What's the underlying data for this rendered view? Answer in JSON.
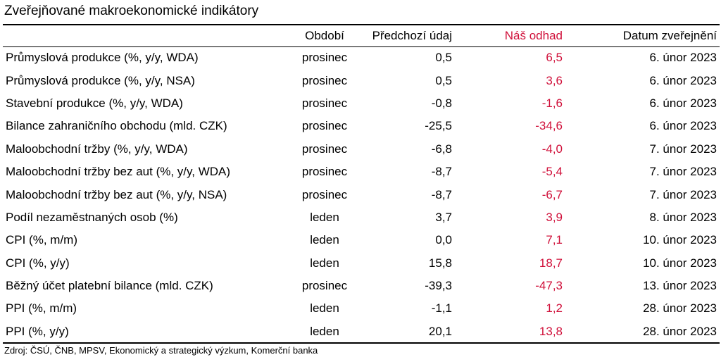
{
  "title": "Zveřejňované makroekonomické indikátory",
  "columns": {
    "name": "",
    "period": "Období",
    "previous": "Předchozí údaj",
    "estimate": "Náš odhad",
    "date": "Datum zveřejnění"
  },
  "colors": {
    "estimate": "#d0103a"
  },
  "rows": [
    {
      "name": "Průmyslová produkce (%, y/y, WDA)",
      "period": "prosinec",
      "previous": "0,5",
      "estimate": "6,5",
      "date": "6. únor 2023"
    },
    {
      "name": "Průmyslová produkce (%, y/y, NSA)",
      "period": "prosinec",
      "previous": "0,5",
      "estimate": "3,6",
      "date": "6. únor 2023"
    },
    {
      "name": "Stavební produkce (%, y/y, WDA)",
      "period": "prosinec",
      "previous": "-0,8",
      "estimate": "-1,6",
      "date": "6. únor 2023"
    },
    {
      "name": "Bilance zahraničního obchodu (mld. CZK)",
      "period": "prosinec",
      "previous": "-25,5",
      "estimate": "-34,6",
      "date": "6. únor 2023"
    },
    {
      "name": "Maloobchodní tržby (%, y/y, WDA)",
      "period": "prosinec",
      "previous": "-6,8",
      "estimate": "-4,0",
      "date": "7. únor 2023"
    },
    {
      "name": "Maloobchodní tržby bez aut (%, y/y, WDA)",
      "period": "prosinec",
      "previous": "-8,7",
      "estimate": "-5,4",
      "date": "7. únor 2023"
    },
    {
      "name": "Maloobchodní tržby bez aut (%, y/y, NSA)",
      "period": "prosinec",
      "previous": "-8,7",
      "estimate": "-6,7",
      "date": "7. únor 2023"
    },
    {
      "name": "Podíl nezaměstnaných osob (%)",
      "period": "leden",
      "previous": "3,7",
      "estimate": "3,9",
      "date": "8. únor 2023"
    },
    {
      "name": "CPI (%, m/m)",
      "period": "leden",
      "previous": "0,0",
      "estimate": "7,1",
      "date": "10. únor 2023"
    },
    {
      "name": "CPI (%, y/y)",
      "period": "leden",
      "previous": "15,8",
      "estimate": "18,7",
      "date": "10. únor 2023"
    },
    {
      "name": "Běžný účet platební bilance (mld. CZK)",
      "period": "prosinec",
      "previous": "-39,3",
      "estimate": "-47,3",
      "date": "13. únor 2023"
    },
    {
      "name": "PPI (%, m/m)",
      "period": "leden",
      "previous": "-1,1",
      "estimate": "1,2",
      "date": "28. únor 2023"
    },
    {
      "name": "PPI (%, y/y)",
      "period": "leden",
      "previous": "20,1",
      "estimate": "13,8",
      "date": "28. únor 2023"
    }
  ],
  "source": "Zdroj: ČSÚ, ČNB, MPSV, Ekonomický a strategický výzkum, Komerční banka"
}
